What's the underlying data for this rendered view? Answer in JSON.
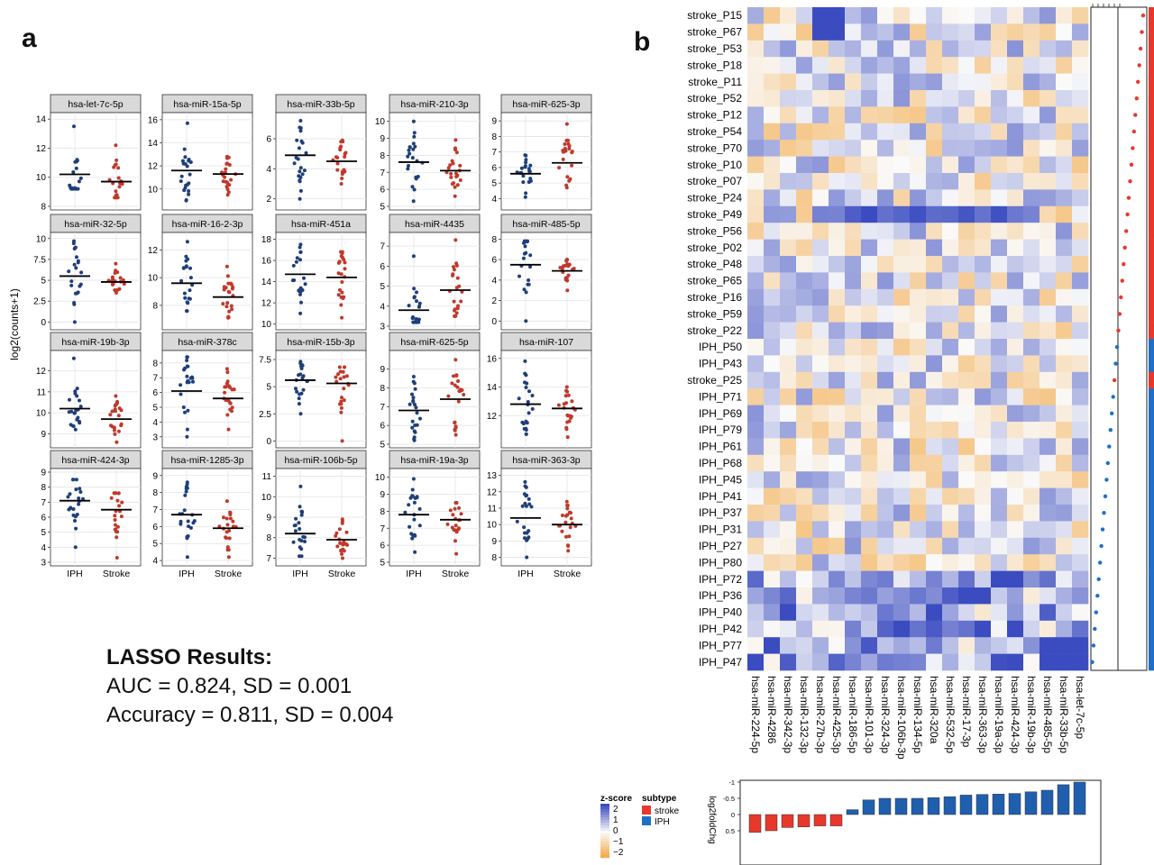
{
  "panel_a_label": "a",
  "panel_b_label": "b",
  "lasso": {
    "title": "LASSO Results:",
    "auc_line": "AUC = 0.824, SD = 0.001",
    "acc_line": "Accuracy = 0.811, SD = 0.004"
  },
  "colors": {
    "iph": "#1f3f7a",
    "stroke": "#c0392b",
    "heat_high": "#3b4cc0",
    "heat_low": "#f2a33a",
    "subtype_stroke": "#e8382c",
    "subtype_iph": "#1f6fc8"
  },
  "chart_data": [
    {
      "type": "scatter",
      "ylabel": "log2(counts+1)",
      "groups": [
        "IPH",
        "Stroke"
      ],
      "facets": [
        {
          "name": "hsa-let-7c-5p",
          "yticks": [
            8,
            10,
            12,
            14
          ],
          "ylim": [
            8,
            14.2
          ],
          "medians": [
            10.2,
            9.7
          ],
          "ranges": [
            [
              9.2,
              13.5
            ],
            [
              8.6,
              12.2
            ]
          ]
        },
        {
          "name": "hsa-miR-15a-5p",
          "yticks": [
            10,
            12,
            14,
            16
          ],
          "ylim": [
            8.5,
            16.3
          ],
          "medians": [
            11.6,
            11.3
          ],
          "ranges": [
            [
              9,
              15.7
            ],
            [
              9.5,
              12.8
            ]
          ]
        },
        {
          "name": "hsa-miR-33b-5p",
          "yticks": [
            2,
            4,
            6
          ],
          "ylim": [
            1.5,
            7.5
          ],
          "medians": [
            4.9,
            4.5
          ],
          "ranges": [
            [
              2,
              7.2
            ],
            [
              3,
              5.9
            ]
          ]
        },
        {
          "name": "hsa-miR-210-3p",
          "yticks": [
            5,
            6,
            7,
            8,
            9,
            10
          ],
          "ylim": [
            5,
            10.3
          ],
          "medians": [
            7.6,
            7.1
          ],
          "ranges": [
            [
              5.3,
              10
            ],
            [
              5.6,
              8.9
            ]
          ]
        },
        {
          "name": "hsa-miR-625-3p",
          "yticks": [
            4,
            5,
            6,
            7,
            8,
            9
          ],
          "ylim": [
            3.5,
            9.3
          ],
          "medians": [
            5.6,
            6.3
          ],
          "ranges": [
            [
              4.1,
              6.8
            ],
            [
              4.7,
              8.8
            ]
          ]
        },
        {
          "name": "hsa-miR-32-5p",
          "yticks": [
            0.0,
            2.5,
            5.0,
            7.5,
            10.0
          ],
          "ylim": [
            -0.5,
            10.3
          ],
          "medians": [
            5.5,
            4.8
          ],
          "ranges": [
            [
              0,
              9.7
            ],
            [
              3.5,
              7
            ]
          ]
        },
        {
          "name": "hsa-miR-16-2-3p",
          "yticks": [
            8,
            10,
            12
          ],
          "ylim": [
            6.5,
            13
          ],
          "medians": [
            9.6,
            8.6
          ],
          "ranges": [
            [
              7.6,
              12.6
            ],
            [
              7.1,
              10.8
            ]
          ]
        },
        {
          "name": "hsa-miR-451a",
          "yticks": [
            10,
            12,
            14,
            16,
            18
          ],
          "ylim": [
            9.8,
            18.3
          ],
          "medians": [
            14.7,
            14.4
          ],
          "ranges": [
            [
              11,
              17.5
            ],
            [
              10.6,
              16.8
            ]
          ]
        },
        {
          "name": "hsa-miR-4435",
          "yticks": [
            3,
            4,
            5,
            6,
            7
          ],
          "ylim": [
            3,
            7.5
          ],
          "medians": [
            3.8,
            4.8
          ],
          "ranges": [
            [
              3.2,
              6.5
            ],
            [
              3.5,
              7.3
            ]
          ]
        },
        {
          "name": "hsa-miR-485-5p",
          "yticks": [
            0,
            2,
            4,
            6,
            8
          ],
          "ylim": [
            -0.5,
            8.3
          ],
          "medians": [
            5.5,
            4.9
          ],
          "ranges": [
            [
              0,
              7.8
            ],
            [
              3,
              6
            ]
          ]
        },
        {
          "name": "hsa-miR-19b-3p",
          "yticks": [
            9,
            10,
            11,
            12
          ],
          "ylim": [
            8.5,
            12.8
          ],
          "medians": [
            10.2,
            9.7
          ],
          "ranges": [
            [
              9.2,
              12.6
            ],
            [
              8.6,
              10.8
            ]
          ]
        },
        {
          "name": "hsa-miR-378c",
          "yticks": [
            3,
            4,
            5,
            6,
            7,
            8
          ],
          "ylim": [
            2.5,
            8.6
          ],
          "medians": [
            6.1,
            5.6
          ],
          "ranges": [
            [
              3,
              8.4
            ],
            [
              3.5,
              7.6
            ]
          ]
        },
        {
          "name": "hsa-miR-15b-3p",
          "yticks": [
            0.0,
            2.5,
            5.0,
            7.5
          ],
          "ylim": [
            -0.3,
            8
          ],
          "medians": [
            5.6,
            5.3
          ],
          "ranges": [
            [
              2.5,
              7.3
            ],
            [
              0,
              6.8
            ]
          ]
        },
        {
          "name": "hsa-miR-625-5p",
          "yticks": [
            5,
            6,
            7,
            8,
            9
          ],
          "ylim": [
            5,
            9.8
          ],
          "medians": [
            6.8,
            7.4
          ],
          "ranges": [
            [
              5.2,
              8.6
            ],
            [
              5.5,
              9.5
            ]
          ]
        },
        {
          "name": "hsa-miR-107",
          "yticks": [
            12,
            14,
            16
          ],
          "ylim": [
            10,
            16.3
          ],
          "medians": [
            12.8,
            12.5
          ],
          "ranges": [
            [
              10.7,
              15.8
            ],
            [
              10.5,
              14
            ]
          ]
        },
        {
          "name": "hsa-miR-424-3p",
          "yticks": [
            3,
            4,
            5,
            6,
            7,
            8,
            9
          ],
          "ylim": [
            3,
            9
          ],
          "medians": [
            7.1,
            6.5
          ],
          "ranges": [
            [
              4,
              8.5
            ],
            [
              3.3,
              7.6
            ]
          ]
        },
        {
          "name": "hsa-miR-1285-3p",
          "yticks": [
            4,
            5,
            6,
            7,
            8,
            9
          ],
          "ylim": [
            3.9,
            9.2
          ],
          "medians": [
            6.7,
            5.9
          ],
          "ranges": [
            [
              4.2,
              8.6
            ],
            [
              4.2,
              7.5
            ]
          ]
        },
        {
          "name": "hsa-miR-106b-5p",
          "yticks": [
            7,
            8,
            9,
            10,
            11
          ],
          "ylim": [
            6.8,
            11.2
          ],
          "medians": [
            8.2,
            7.9
          ],
          "ranges": [
            [
              7.1,
              10.5
            ],
            [
              7,
              8.9
            ]
          ]
        },
        {
          "name": "hsa-miR-19a-3p",
          "yticks": [
            5,
            6,
            7,
            8,
            9,
            10
          ],
          "ylim": [
            5,
            10.3
          ],
          "medians": [
            7.8,
            7.5
          ],
          "ranges": [
            [
              5.6,
              9.9
            ],
            [
              5.5,
              8.5
            ]
          ]
        },
        {
          "name": "hsa-miR-363-3p",
          "yticks": [
            8,
            9,
            10,
            11,
            12,
            13
          ],
          "ylim": [
            7.7,
            13.2
          ],
          "medians": [
            10.4,
            10
          ],
          "ranges": [
            [
              8,
              12.6
            ],
            [
              8.4,
              11.4
            ]
          ]
        }
      ]
    },
    {
      "type": "heatmap",
      "rows": [
        "stroke_P15",
        "stroke_P67",
        "stroke_P53",
        "stroke_P18",
        "stroke_P11",
        "stroke_P52",
        "stroke_P12",
        "stroke_P54",
        "stroke_P70",
        "stroke_P10",
        "stroke_P07",
        "stroke_P24",
        "stroke_P49",
        "stroke_P56",
        "stroke_P02",
        "stroke_P48",
        "stroke_P65",
        "stroke_P16",
        "stroke_P59",
        "stroke_P22",
        "IPH_P50",
        "IPH_P43",
        "stroke_P25",
        "IPH_P71",
        "IPH_P69",
        "IPH_P79",
        "IPH_P61",
        "IPH_P68",
        "IPH_P45",
        "IPH_P41",
        "IPH_P37",
        "IPH_P31",
        "IPH_P27",
        "IPH_P80",
        "IPH_P72",
        "IPH_P36",
        "IPH_P40",
        "IPH_P42",
        "IPH_P77",
        "IPH_P47"
      ],
      "columns": [
        "hsa-miR-224-5p",
        "hsa-miR-4286",
        "hsa-miR-342-3p",
        "hsa-miR-132-3p",
        "hsa-miR-27b-3p",
        "hsa-miR-425-3p",
        "hsa-miR-186-5p",
        "hsa-miR-101-3p",
        "hsa-miR-324-3p",
        "hsa-miR-106b-3p",
        "hsa-miR-134-5p",
        "hsa-miR-320a",
        "hsa-miR-532-5p",
        "hsa-miR-17-3p",
        "hsa-miR-363-3p",
        "hsa-miR-19a-3p",
        "hsa-miR-424-3p",
        "hsa-miR-19b-3p",
        "hsa-miR-485-5p",
        "hsa-miR-33b-5p",
        "hsa-let-7c-5p"
      ],
      "legend": {
        "zscore_title": "z-score",
        "zscore_ticks": [
          "2",
          "1",
          "0",
          "−1",
          "−2"
        ],
        "subtype_title": "subtype",
        "subtype_items": [
          "stroke",
          "IPH"
        ]
      },
      "bar_ylabel": "log2foldChg",
      "bar_ticks": [
        "-1",
        "-0.5",
        "0",
        "0.5"
      ],
      "log2foldchg": [
        0.55,
        0.5,
        0.4,
        0.38,
        0.35,
        0.35,
        -0.15,
        -0.45,
        -0.5,
        -0.5,
        -0.5,
        -0.52,
        -0.55,
        -0.6,
        -0.62,
        -0.63,
        -0.65,
        -0.7,
        -0.75,
        -0.92,
        -1.0
      ]
    }
  ]
}
